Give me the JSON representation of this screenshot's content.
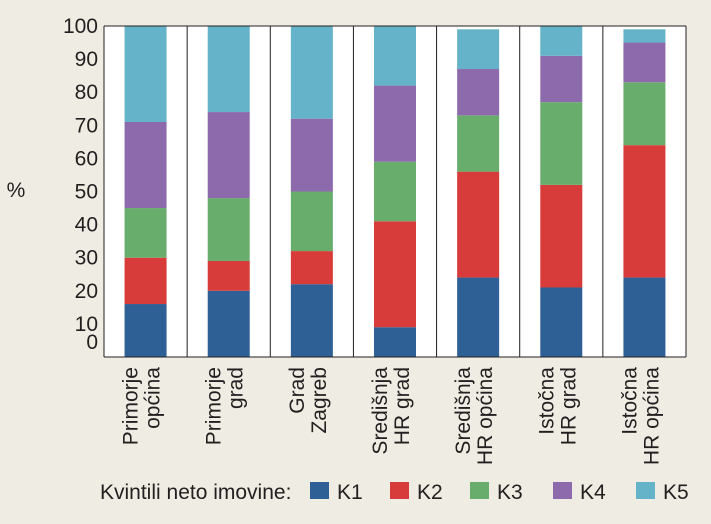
{
  "chart_data": {
    "type": "bar",
    "stacked": true,
    "ylabel": "%",
    "ylim": [
      0,
      100
    ],
    "yticks": [
      0,
      10,
      20,
      30,
      40,
      50,
      60,
      70,
      80,
      90,
      100
    ],
    "grid": "vertical separators between categories",
    "categories": [
      [
        "Primorje",
        "općina"
      ],
      [
        "Primorje",
        "grad"
      ],
      [
        "Grad",
        "Zagreb"
      ],
      [
        "Središnja",
        "HR grad"
      ],
      [
        "Središnja",
        "HR općina"
      ],
      [
        "Istočna",
        "HR grad"
      ],
      [
        "Istočna",
        "HR općina"
      ]
    ],
    "series": [
      {
        "name": "K1",
        "color": "#2e6096",
        "values": [
          16,
          20,
          22,
          9,
          24,
          21,
          24
        ]
      },
      {
        "name": "K2",
        "color": "#d83c3a",
        "values": [
          14,
          9,
          10,
          32,
          32,
          31,
          40
        ]
      },
      {
        "name": "K3",
        "color": "#68ad6c",
        "values": [
          15,
          19,
          18,
          18,
          17,
          25,
          19
        ]
      },
      {
        "name": "K4",
        "color": "#8c6aac",
        "values": [
          26,
          26,
          22,
          23,
          14,
          14,
          12
        ]
      },
      {
        "name": "K5",
        "color": "#64b3c9",
        "values": [
          29,
          26,
          28,
          18,
          12,
          9,
          4
        ]
      }
    ],
    "legend": {
      "title": "Kvintili neto imovine:",
      "placement": "bottom"
    }
  }
}
